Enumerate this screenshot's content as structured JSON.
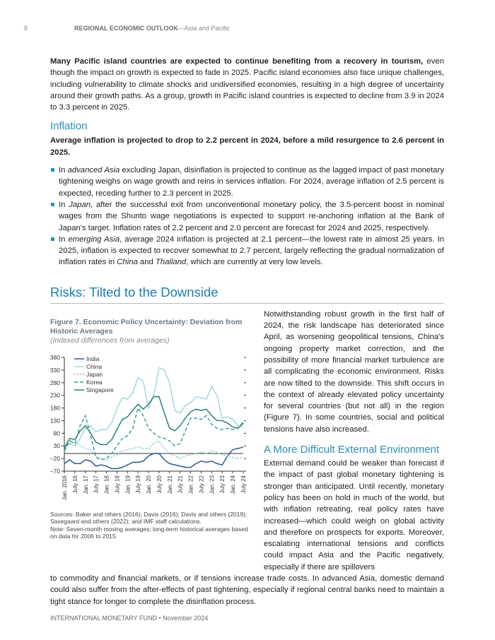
{
  "header": {
    "page_number": "8",
    "title_bold": "REGIONAL ECONOMIC OUTLOOK",
    "title_rest": "—Asia and Pacific"
  },
  "intro": {
    "bold": "Many Pacific island countries are expected to continue benefiting from a recovery in tourism,",
    "text": " even though the impact on growth is expected to fade in 2025.  Pacific island economies also face unique challenges, including vulnerability to climate shocks and undiversified economies, resulting in a high degree of uncertainty around their growth paths. As a group, growth in Pacific island countries is expected to decline from 3.9 in 2024 to 3.3 percent in 2025."
  },
  "inflation": {
    "heading": "Inflation",
    "lead": "Average inflation is projected to drop to 2.2 percent in 2024, before a mild resurgence to 2.6 percent in 2025.",
    "bullets": [
      {
        "pre": "In ",
        "em": "advanced Asia",
        "text": " excluding Japan, disinflation is projected to continue as the lagged impact of past monetary tightening weighs on wage growth and reins in services inflation. For 2024, average inflation of 2.5 percent is expected, receding further to 2.3 percent in 2025."
      },
      {
        "pre": "In ",
        "em": "Japan,",
        "text": " after the successful exit from unconventional monetary policy, the 3.5-percent boost in nominal wages from the Shunto wage negotiations is expected to support re-anchoring inflation at the Bank of Japan's target. Inflation rates of 2.2 percent and 2.0 percent are forecast for 2024 and 2025, respectively."
      },
      {
        "pre": "In ",
        "em": "emerging Asia",
        "text": ", average 2024 inflation is projected at 2.1 percent—the lowest rate in almost 25 years. In 2025, inflation is expected to recover somewhat to 2.7 percent, largely reflecting the gradual normalization of inflation rates in ",
        "em2": "China",
        "mid": " and ",
        "em3": "Thailand",
        "end": ", which are currently at very low levels."
      }
    ]
  },
  "risks": {
    "heading": "Risks: Tilted to the Downside",
    "para1": "Notwithstanding robust growth in the first half of 2024, the risk landscape has deteriorated since April, as worsening geopolitical tensions, China's ongoing property market correction, and the possibility of more financial market turbulence are all complicating the economic environment. Risks are now tilted to the downside. This shift occurs in the context of already elevated policy uncertainty for several countries (but not all) in the region (Figure 7). In some countries, social and political tensions have also increased.",
    "subheading": "A More Difficult External Environment",
    "para2": "External demand could be weaker than forecast if the impact of past global monetary tightening is stronger than anticipated. Until recently, monetary policy has been on hold in much of the world, but with inflation retreating, real policy rates have increased—which could weigh on global activity and therefore on prospects for exports. Moreover, escalating international tensions and conflicts could impact Asia and the Pacific negatively, especially if there are spillovers",
    "para3": "to commodity and financial markets, or if tensions increase trade costs. In advanced Asia, domestic demand could also suffer from the after-effects of past tightening, especially if regional central banks need to maintain a tight stance for longer to complete the disinflation process."
  },
  "figure": {
    "title": "Figure 7. Economic Policy Uncertainty: Deviation from Historic Averages",
    "subtitle": "(Indexed differences from averages)",
    "sources": "Sources: Baker and others (2016); Davis (2016); Davis and others (2019); Saxegaard and others (2022); and IMF staff calculations.",
    "note": "Note: Seven-month moving averages; long-term historical averages based on data for 2006 to 2015."
  },
  "chart_data": {
    "type": "line",
    "ylim": [
      -70,
      380
    ],
    "yticks": [
      -70,
      -20,
      30,
      80,
      130,
      180,
      230,
      280,
      330,
      380
    ],
    "xticks": [
      "Jan. 2016",
      "July 16",
      "Jan. 17",
      "July 17",
      "Jan. 18",
      "July 18",
      "Jan. 19",
      "July 19",
      "Jan. 20",
      "July 20",
      "Jan. 21",
      "July 21",
      "Jan. 22",
      "July 22",
      "Jan. 23",
      "July 23",
      "Jan. 24",
      "July 24"
    ],
    "x_note": "quarterly points Jan 2016 – July 2024",
    "legend": "top-left",
    "zero_line": true,
    "series": [
      {
        "name": "India",
        "color": "#1f4e8c",
        "dash": "",
        "values": [
          -40,
          -25,
          -40,
          -40,
          -25,
          -30,
          -50,
          -45,
          -50,
          -60,
          -60,
          -55,
          -45,
          -35,
          -35,
          -30,
          -10,
          0,
          0,
          -25,
          -40,
          -45,
          -50,
          -55,
          -55,
          -40,
          -30,
          -35,
          -30,
          -40,
          -45,
          -10,
          15,
          20,
          25
        ]
      },
      {
        "name": "China",
        "color": "#9fd3dc",
        "dash": "",
        "values": [
          20,
          40,
          30,
          60,
          100,
          110,
          85,
          95,
          95,
          120,
          180,
          220,
          215,
          240,
          300,
          285,
          180,
          230,
          340,
          330,
          280,
          170,
          160,
          190,
          200,
          225,
          220,
          215,
          265,
          230,
          140,
          145,
          135,
          110,
          105
        ]
      },
      {
        "name": "Japan",
        "color": "#7cc5c4",
        "dash": "2,2",
        "values": [
          30,
          40,
          45,
          30,
          20,
          15,
          -10,
          -20,
          -25,
          -15,
          -5,
          10,
          15,
          20,
          25,
          20,
          20,
          40,
          50,
          20,
          0,
          -10,
          -20,
          -10,
          -5,
          0,
          5,
          0,
          10,
          5,
          -5,
          -10,
          -15,
          -20,
          -15
        ]
      },
      {
        "name": "Korea",
        "color": "#2a9d9c",
        "dash": "5,3",
        "values": [
          10,
          50,
          40,
          110,
          150,
          70,
          -15,
          -25,
          -20,
          0,
          30,
          60,
          70,
          100,
          180,
          150,
          100,
          80,
          65,
          60,
          50,
          30,
          40,
          90,
          140,
          140,
          135,
          150,
          115,
          100,
          95,
          100,
          95,
          100,
          125
        ]
      },
      {
        "name": "Singapore",
        "color": "#1d7a73",
        "dash": "",
        "values": [
          20,
          60,
          55,
          90,
          110,
          80,
          45,
          35,
          35,
          55,
          95,
          135,
          145,
          170,
          195,
          175,
          195,
          225,
          225,
          160,
          100,
          90,
          110,
          140,
          165,
          175,
          170,
          175,
          150,
          130,
          130,
          120,
          105,
          100,
          120
        ]
      }
    ]
  },
  "footer": {
    "org": "INTERNATIONAL MONETARY FUND",
    "sep": "•",
    "date": "November 2024"
  }
}
